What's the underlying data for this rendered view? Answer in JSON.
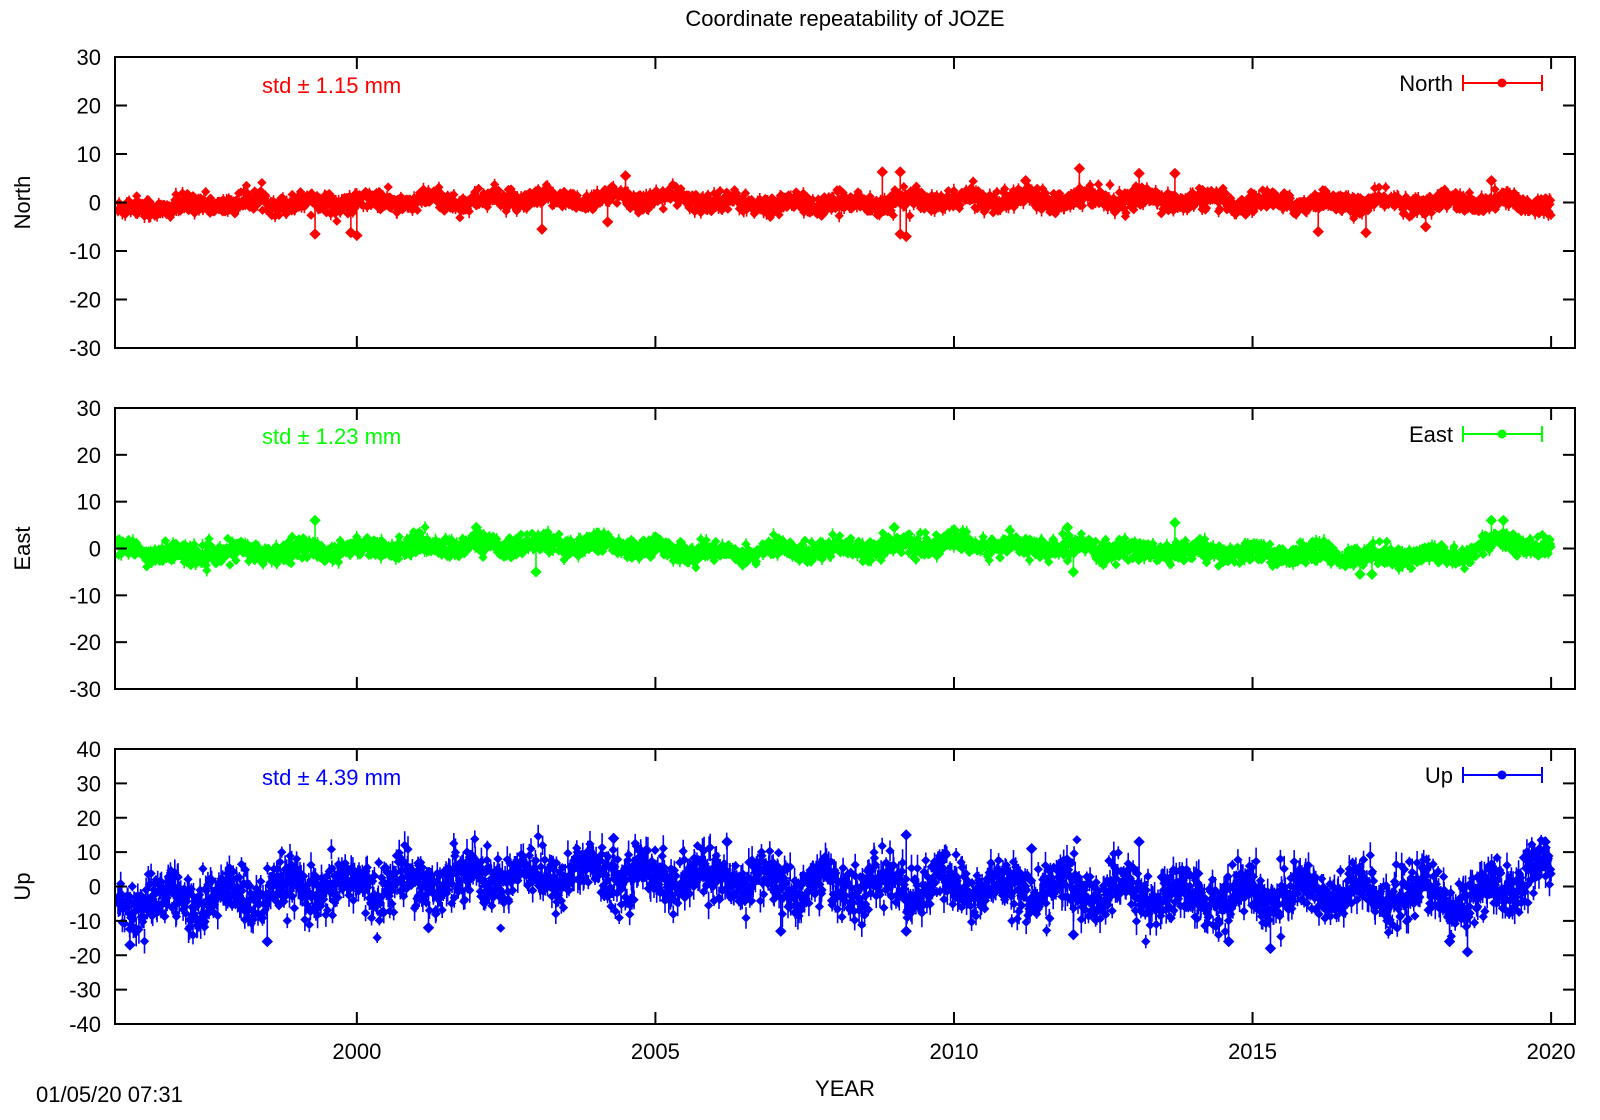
{
  "chart_data": {
    "type": "scatter",
    "title": "Coordinate repeatability of JOZE",
    "xlabel": "YEAR",
    "xlim": [
      1995.95,
      2020.4
    ],
    "xticks": [
      2000,
      2005,
      2010,
      2015,
      2020
    ],
    "timestamp": "01/05/20 07:31",
    "panels": [
      {
        "ylabel": "North",
        "ylim": [
          -30,
          30
        ],
        "yticks": [
          -30,
          -20,
          -10,
          0,
          10,
          20,
          30
        ],
        "std_text": "std ± 1.15 mm",
        "series": [
          {
            "name": "North",
            "color": "#ff0000",
            "noise": 1.15,
            "trend": [
              [
                1996,
                -1.5
              ],
              [
                1998,
                0
              ],
              [
                2000,
                0
              ],
              [
                2005,
                1
              ],
              [
                2007,
                -0.5
              ],
              [
                2010,
                0.5
              ],
              [
                2012,
                1
              ],
              [
                2015,
                0
              ],
              [
                2020,
                0
              ]
            ],
            "outliers": [
              [
                1999.3,
                -6.5
              ],
              [
                1999.9,
                -6.2
              ],
              [
                2000.0,
                -6.8
              ],
              [
                2003.1,
                -5.5
              ],
              [
                2004.5,
                5.5
              ],
              [
                2004.2,
                -4
              ],
              [
                2008.8,
                6.3
              ],
              [
                2009.1,
                6.3
              ],
              [
                2009.1,
                -6.5
              ],
              [
                2009.2,
                -7
              ],
              [
                2011.2,
                4.5
              ],
              [
                2012.1,
                7
              ],
              [
                2013.1,
                6
              ],
              [
                2013.7,
                6
              ],
              [
                2016.1,
                -6
              ],
              [
                2016.9,
                -6.2
              ],
              [
                2017.9,
                -5
              ],
              [
                2019.0,
                4.5
              ]
            ]
          }
        ]
      },
      {
        "ylabel": "East",
        "ylim": [
          -30,
          30
        ],
        "yticks": [
          -30,
          -20,
          -10,
          0,
          10,
          20,
          30
        ],
        "std_text": "std ± 1.23 mm",
        "series": [
          {
            "name": "East",
            "color": "#00ff00",
            "noise": 1.23,
            "trend": [
              [
                1996,
                0
              ],
              [
                1997,
                -1.5
              ],
              [
                1999,
                -0.5
              ],
              [
                2001,
                0.5
              ],
              [
                2004,
                1
              ],
              [
                2006,
                -1
              ],
              [
                2010,
                1
              ],
              [
                2013,
                -0.5
              ],
              [
                2015,
                -1
              ],
              [
                2017,
                -1.5
              ],
              [
                2018.5,
                -1.5
              ],
              [
                2019,
                1.5
              ],
              [
                2020,
                0
              ]
            ],
            "outliers": [
              [
                1999.3,
                6
              ],
              [
                2002.0,
                4.5
              ],
              [
                2003.0,
                -5
              ],
              [
                2009.0,
                4.5
              ],
              [
                2010.0,
                4
              ],
              [
                2011.9,
                4.5
              ],
              [
                2012.0,
                -5
              ],
              [
                2013.7,
                5.5
              ],
              [
                2016.8,
                -5.5
              ],
              [
                2017.0,
                -5.5
              ],
              [
                2019.0,
                6
              ],
              [
                2019.2,
                6
              ]
            ]
          }
        ]
      },
      {
        "ylabel": "Up",
        "ylim": [
          -40,
          40
        ],
        "yticks": [
          -40,
          -30,
          -20,
          -10,
          0,
          10,
          20,
          30,
          40
        ],
        "std_text": "std ± 4.39 mm",
        "series": [
          {
            "name": "Up",
            "color": "#0000ff",
            "noise": 4.39,
            "trend": [
              [
                1996,
                -5
              ],
              [
                1998,
                -3
              ],
              [
                2000,
                0
              ],
              [
                2002,
                3
              ],
              [
                2004,
                4
              ],
              [
                2006,
                2
              ],
              [
                2008,
                0
              ],
              [
                2010,
                0
              ],
              [
                2012,
                -1
              ],
              [
                2014,
                -3
              ],
              [
                2016,
                -2
              ],
              [
                2018,
                -2
              ],
              [
                2018.6,
                -5
              ],
              [
                2019.5,
                2
              ],
              [
                2020,
                5
              ]
            ],
            "outliers": [
              [
                1996.2,
                -17
              ],
              [
                1998.5,
                -16
              ],
              [
                2001.2,
                -12
              ],
              [
                2004.3,
                14
              ],
              [
                2006.2,
                13
              ],
              [
                2007.1,
                -13
              ],
              [
                2009.2,
                15
              ],
              [
                2009.2,
                -13
              ],
              [
                2011.3,
                11
              ],
              [
                2012.0,
                -14
              ],
              [
                2013.1,
                13
              ],
              [
                2014.6,
                -16
              ],
              [
                2015.3,
                -18
              ],
              [
                2018.3,
                -16
              ],
              [
                2018.6,
                -19
              ],
              [
                2019.9,
                13
              ]
            ]
          }
        ]
      }
    ]
  }
}
